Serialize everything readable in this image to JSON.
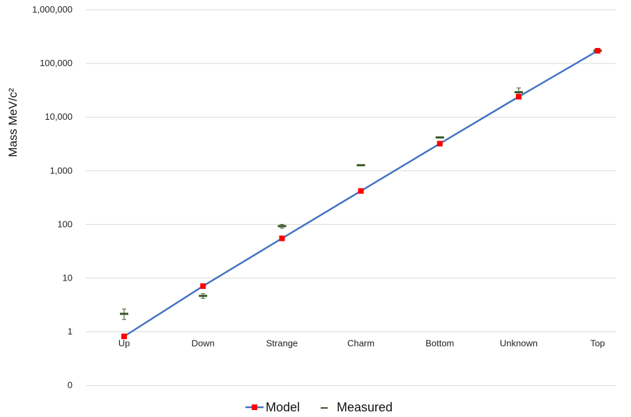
{
  "chart_data": {
    "type": "line",
    "ylabel": "Mass MeV/c²",
    "yscale": "log",
    "ylim": [
      0.1,
      1000000
    ],
    "ytick_values": [
      0.1,
      1,
      10,
      100,
      1000,
      10000,
      100000,
      1000000
    ],
    "ytick_labels": [
      "0",
      "1",
      "10",
      "100",
      "1,000",
      "10,000",
      "100,000",
      "1,000,000"
    ],
    "grid": true,
    "legend_position": "bottom",
    "categories": [
      "Up",
      "Down",
      "Strange",
      "Charm",
      "Bottom",
      "Unknown",
      "Top"
    ],
    "series": [
      {
        "name": "Model",
        "kind": "line-with-markers",
        "line_color": "#4472C4",
        "marker_color": "#FF0000",
        "values": [
          0.82,
          7.1,
          55,
          420,
          3200,
          24000,
          172000
        ]
      },
      {
        "name": "Measured",
        "kind": "markers-with-error-bars",
        "marker_color": "#375623",
        "values": [
          2.16,
          4.67,
          93,
          1270,
          4180,
          29000,
          172700
        ],
        "err_low": [
          1.7,
          4.2,
          85,
          1240,
          4120,
          24000,
          165000
        ],
        "err_high": [
          2.65,
          5.15,
          100,
          1300,
          4240,
          35000,
          180000
        ]
      }
    ]
  }
}
